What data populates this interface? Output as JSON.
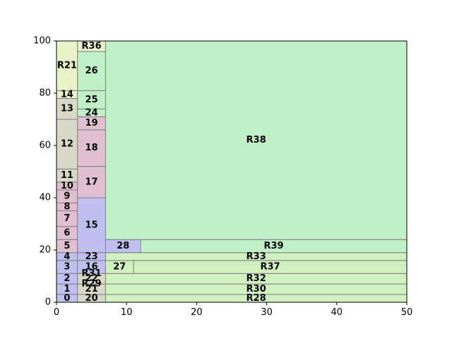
{
  "chart_data": {
    "type": "treemap",
    "title": "",
    "xlabel": "",
    "ylabel": "",
    "xlim": [
      0,
      50
    ],
    "ylim": [
      0,
      100
    ],
    "x_ticks": [
      0,
      10,
      20,
      30,
      40,
      50
    ],
    "y_ticks": [
      0,
      20,
      40,
      60,
      80,
      100
    ],
    "x_tick_labels": [
      "0",
      "10",
      "20",
      "30",
      "40",
      "50"
    ],
    "y_tick_labels": [
      "0",
      "20",
      "40",
      "60",
      "80",
      "100"
    ],
    "colors": {
      "blue": "#c0c0f0",
      "pink": "#e0c0d0",
      "gray": "#d8d8c8",
      "yellowgreen": "#eaf2c8",
      "lightgreen": "#d0f0c0",
      "green": "#c0f0c8"
    },
    "rects": [
      {
        "label": "0",
        "x0": 0,
        "x1": 3,
        "y0": 0,
        "y1": 3,
        "color": "blue"
      },
      {
        "label": "1",
        "x0": 0,
        "x1": 3,
        "y0": 3,
        "y1": 7,
        "color": "blue"
      },
      {
        "label": "2",
        "x0": 0,
        "x1": 3,
        "y0": 7,
        "y1": 11,
        "color": "blue"
      },
      {
        "label": "3",
        "x0": 0,
        "x1": 3,
        "y0": 11,
        "y1": 16,
        "color": "blue"
      },
      {
        "label": "4",
        "x0": 0,
        "x1": 3,
        "y0": 16,
        "y1": 19,
        "color": "blue"
      },
      {
        "label": "5",
        "x0": 0,
        "x1": 3,
        "y0": 19,
        "y1": 24,
        "color": "pink"
      },
      {
        "label": "6",
        "x0": 0,
        "x1": 3,
        "y0": 24,
        "y1": 29,
        "color": "pink"
      },
      {
        "label": "7",
        "x0": 0,
        "x1": 3,
        "y0": 29,
        "y1": 35,
        "color": "pink"
      },
      {
        "label": "8",
        "x0": 0,
        "x1": 3,
        "y0": 35,
        "y1": 38,
        "color": "pink"
      },
      {
        "label": "9",
        "x0": 0,
        "x1": 3,
        "y0": 38,
        "y1": 43,
        "color": "pink"
      },
      {
        "label": "10",
        "x0": 0,
        "x1": 3,
        "y0": 43,
        "y1": 46,
        "color": "pink"
      },
      {
        "label": "11",
        "x0": 0,
        "x1": 3,
        "y0": 46,
        "y1": 51,
        "color": "gray"
      },
      {
        "label": "12",
        "x0": 0,
        "x1": 3,
        "y0": 51,
        "y1": 70,
        "color": "gray"
      },
      {
        "label": "13",
        "x0": 0,
        "x1": 3,
        "y0": 70,
        "y1": 78,
        "color": "gray"
      },
      {
        "label": "14",
        "x0": 0,
        "x1": 3,
        "y0": 78,
        "y1": 81,
        "color": "yellowgreen"
      },
      {
        "label": "R21",
        "x0": 0,
        "x1": 3,
        "y0": 81,
        "y1": 100,
        "color": "yellowgreen"
      },
      {
        "label": "20",
        "x0": 3,
        "x1": 7,
        "y0": 0,
        "y1": 3,
        "color": "gray"
      },
      {
        "label": "21",
        "x0": 3,
        "x1": 7,
        "y0": 3,
        "y1": 7,
        "color": "gray"
      },
      {
        "label": "22",
        "x0": 3,
        "x1": 7,
        "y0": 7,
        "y1": 11,
        "color": "gray"
      },
      {
        "label": "16",
        "x0": 3,
        "x1": 7,
        "y0": 11,
        "y1": 16,
        "color": "blue"
      },
      {
        "label": "23",
        "x0": 3,
        "x1": 7,
        "y0": 16,
        "y1": 19,
        "color": "blue"
      },
      {
        "label": "15",
        "x0": 3,
        "x1": 7,
        "y0": 19,
        "y1": 40,
        "color": "blue"
      },
      {
        "label": "17",
        "x0": 3,
        "x1": 7,
        "y0": 40,
        "y1": 52,
        "color": "pink"
      },
      {
        "label": "18",
        "x0": 3,
        "x1": 7,
        "y0": 52,
        "y1": 66,
        "color": "pink"
      },
      {
        "label": "19",
        "x0": 3,
        "x1": 7,
        "y0": 66,
        "y1": 71,
        "color": "pink"
      },
      {
        "label": "24",
        "x0": 3,
        "x1": 7,
        "y0": 71,
        "y1": 74,
        "color": "green"
      },
      {
        "label": "25",
        "x0": 3,
        "x1": 7,
        "y0": 74,
        "y1": 81,
        "color": "green"
      },
      {
        "label": "26",
        "x0": 3,
        "x1": 7,
        "y0": 81,
        "y1": 96,
        "color": "green"
      },
      {
        "label": "R36",
        "x0": 3,
        "x1": 7,
        "y0": 96,
        "y1": 100,
        "color": "yellowgreen"
      },
      {
        "label": "R28",
        "x0": 7,
        "x1": 50,
        "y0": 0,
        "y1": 3,
        "color": "lightgreen"
      },
      {
        "label": "R30",
        "x0": 7,
        "x1": 50,
        "y0": 3,
        "y1": 7,
        "color": "lightgreen"
      },
      {
        "label": "R32",
        "x0": 7,
        "x1": 50,
        "y0": 7,
        "y1": 11,
        "color": "lightgreen"
      },
      {
        "label": "27",
        "x0": 7,
        "x1": 11,
        "y0": 11,
        "y1": 16,
        "color": "lightgreen"
      },
      {
        "label": "R37",
        "x0": 11,
        "x1": 50,
        "y0": 11,
        "y1": 16,
        "color": "lightgreen"
      },
      {
        "label": "R33",
        "x0": 7,
        "x1": 50,
        "y0": 16,
        "y1": 19,
        "color": "lightgreen"
      },
      {
        "label": "28",
        "x0": 7,
        "x1": 12,
        "y0": 19,
        "y1": 24,
        "color": "blue"
      },
      {
        "label": "R39",
        "x0": 12,
        "x1": 50,
        "y0": 19,
        "y1": 24,
        "color": "green"
      },
      {
        "label": "R38",
        "x0": 7,
        "x1": 50,
        "y0": 24,
        "y1": 100,
        "color": "green"
      }
    ],
    "extra_labels": [
      {
        "label": "R31",
        "x": 5,
        "y": 11
      },
      {
        "label": "R29",
        "x": 5,
        "y": 7
      }
    ]
  }
}
